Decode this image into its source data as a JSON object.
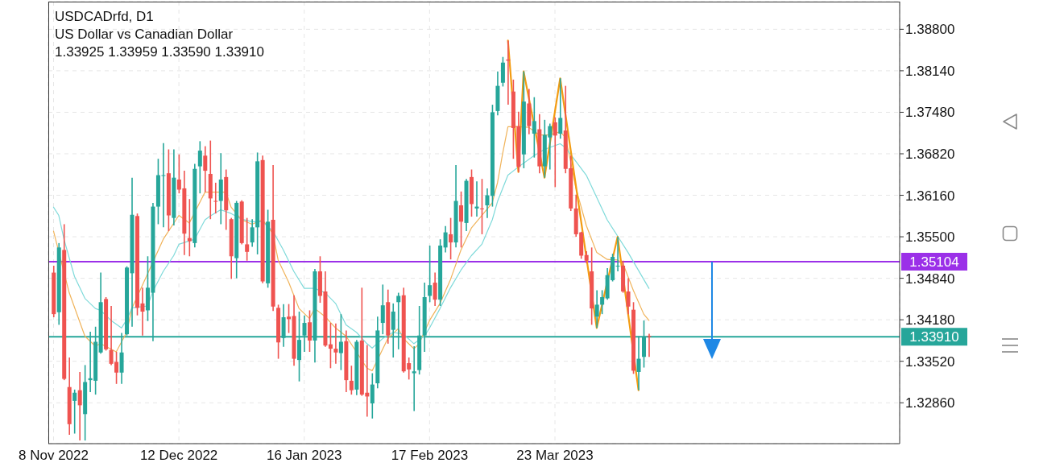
{
  "chart_data": {
    "type": "candlestick",
    "title": "USDCADrfd, D1",
    "subtitle": "US Dollar vs Canadian Dollar",
    "annotations": [
      "1.33925 1.33959 1.33590 1.33910"
    ],
    "categories": [
      "8 Nov 2022",
      null,
      null,
      null,
      null,
      null,
      null,
      null,
      null,
      null,
      null,
      null,
      null,
      null,
      null,
      null,
      null,
      null,
      null,
      null,
      null,
      null,
      null,
      null,
      "12 Dec 2022",
      null,
      null,
      null,
      null,
      null,
      null,
      null,
      null,
      null,
      null,
      null,
      null,
      null,
      null,
      null,
      null,
      null,
      null,
      null,
      null,
      null,
      null,
      null,
      "16 Jan 2023",
      null,
      null,
      null,
      null,
      null,
      null,
      null,
      null,
      null,
      null,
      null,
      null,
      null,
      null,
      null,
      null,
      null,
      null,
      null,
      null,
      null,
      null,
      null,
      "17 Feb 2023",
      null,
      null,
      null,
      null,
      null,
      null,
      null,
      null,
      null,
      null,
      null,
      null,
      null,
      null,
      null,
      null,
      null,
      null,
      null,
      null,
      null,
      null,
      null,
      "23 Mar 2023",
      null,
      null,
      null,
      null,
      null,
      null,
      null,
      null,
      null,
      null,
      null,
      null,
      null,
      null,
      null,
      null,
      null,
      null
    ],
    "ohlc": [
      [
        1.3493,
        1.3504,
        1.3422,
        1.3427
      ],
      [
        1.343,
        1.354,
        1.341,
        1.3533
      ],
      [
        1.3529,
        1.357,
        1.3322,
        1.3324
      ],
      [
        1.3311,
        1.3358,
        1.3235,
        1.3252
      ],
      [
        1.3289,
        1.3307,
        1.3237,
        1.3302
      ],
      [
        1.3306,
        1.3335,
        1.3226,
        1.3282
      ],
      [
        1.3268,
        1.3346,
        1.3226,
        1.3319
      ],
      [
        1.3322,
        1.3399,
        1.3303,
        1.3325
      ],
      [
        1.3321,
        1.3407,
        1.3299,
        1.3383
      ],
      [
        1.3366,
        1.3493,
        1.3364,
        1.3446
      ],
      [
        1.3451,
        1.3454,
        1.3369,
        1.3371
      ],
      [
        1.337,
        1.344,
        1.3346,
        1.3348
      ],
      [
        1.3351,
        1.3367,
        1.3316,
        1.3334
      ],
      [
        1.3334,
        1.3397,
        1.3316,
        1.3366
      ],
      [
        1.3395,
        1.3503,
        1.3393,
        1.3501
      ],
      [
        1.3492,
        1.3644,
        1.3407,
        1.3585
      ],
      [
        1.3583,
        1.3587,
        1.3425,
        1.3437
      ],
      [
        1.3444,
        1.3469,
        1.3393,
        1.3431
      ],
      [
        1.3433,
        1.3519,
        1.3416,
        1.3469
      ],
      [
        1.3461,
        1.3604,
        1.3384,
        1.3598
      ],
      [
        1.3598,
        1.3674,
        1.357,
        1.3648
      ],
      [
        1.3647,
        1.3699,
        1.3565,
        1.3648
      ],
      [
        1.3651,
        1.3689,
        1.3559,
        1.3584
      ],
      [
        1.358,
        1.3689,
        1.3568,
        1.3644
      ],
      [
        1.3641,
        1.3681,
        1.3619,
        1.3625
      ],
      [
        1.3627,
        1.3655,
        1.3521,
        1.3555
      ],
      [
        1.3548,
        1.361,
        1.3519,
        1.3543
      ],
      [
        1.354,
        1.3666,
        1.3533,
        1.3658
      ],
      [
        1.3662,
        1.3702,
        1.3619,
        1.3687
      ],
      [
        1.3679,
        1.3694,
        1.3621,
        1.3655
      ],
      [
        1.365,
        1.3703,
        1.3578,
        1.3611
      ],
      [
        1.3607,
        1.3636,
        1.3587,
        1.3606
      ],
      [
        1.3607,
        1.3683,
        1.357,
        1.3641
      ],
      [
        1.3645,
        1.3657,
        1.3561,
        1.3592
      ],
      [
        1.3578,
        1.358,
        1.3483,
        1.3519
      ],
      [
        1.3516,
        1.3607,
        1.3484,
        1.3604
      ],
      [
        1.3606,
        1.3608,
        1.3538,
        1.354
      ],
      [
        1.3538,
        1.358,
        1.3512,
        1.3526
      ],
      [
        1.3541,
        1.3578,
        1.3534,
        1.3565
      ],
      [
        1.3565,
        1.3684,
        1.3522,
        1.367
      ],
      [
        1.3672,
        1.3679,
        1.3476,
        1.3479
      ],
      [
        1.3476,
        1.3593,
        1.3469,
        1.3574
      ],
      [
        1.3577,
        1.3664,
        1.3432,
        1.3439
      ],
      [
        1.3437,
        1.3442,
        1.3356,
        1.3382
      ],
      [
        1.3389,
        1.3443,
        1.3375,
        1.3422
      ],
      [
        1.3423,
        1.3443,
        1.3397,
        1.3419
      ],
      [
        1.3424,
        1.3457,
        1.3345,
        1.3356
      ],
      [
        1.3354,
        1.3431,
        1.332,
        1.3386
      ],
      [
        1.3393,
        1.3425,
        1.3367,
        1.3413
      ],
      [
        1.3414,
        1.3433,
        1.3367,
        1.3385
      ],
      [
        1.3385,
        1.3499,
        1.335,
        1.3495
      ],
      [
        1.3495,
        1.3519,
        1.3445,
        1.3456
      ],
      [
        1.3463,
        1.3495,
        1.3375,
        1.3377
      ],
      [
        1.3379,
        1.3413,
        1.3341,
        1.3372
      ],
      [
        1.3372,
        1.3412,
        1.3348,
        1.3366
      ],
      [
        1.3365,
        1.3427,
        1.3338,
        1.3383
      ],
      [
        1.3384,
        1.3401,
        1.3303,
        1.3322
      ],
      [
        1.3321,
        1.3345,
        1.3299,
        1.3306
      ],
      [
        1.3307,
        1.3386,
        1.3298,
        1.3383
      ],
      [
        1.3385,
        1.3469,
        1.3297,
        1.3299
      ],
      [
        1.3302,
        1.3378,
        1.3264,
        1.3296
      ],
      [
        1.3285,
        1.3333,
        1.3261,
        1.3315
      ],
      [
        1.3317,
        1.3423,
        1.3309,
        1.3401
      ],
      [
        1.3413,
        1.3474,
        1.3395,
        1.3441
      ],
      [
        1.3446,
        1.3466,
        1.338,
        1.3393
      ],
      [
        1.3402,
        1.3444,
        1.3358,
        1.3431
      ],
      [
        1.3446,
        1.3461,
        1.3371,
        1.3456
      ],
      [
        1.3457,
        1.3469,
        1.3334,
        1.3336
      ],
      [
        1.3349,
        1.3358,
        1.3323,
        1.3339
      ],
      [
        1.3333,
        1.3376,
        1.3273,
        1.3336
      ],
      [
        1.3338,
        1.344,
        1.3331,
        1.3393
      ],
      [
        1.3393,
        1.3477,
        1.3367,
        1.3454
      ],
      [
        1.3456,
        1.3536,
        1.3446,
        1.3473
      ],
      [
        1.3477,
        1.3493,
        1.344,
        1.345
      ],
      [
        1.345,
        1.3546,
        1.344,
        1.3536
      ],
      [
        1.3533,
        1.3567,
        1.3525,
        1.3557
      ],
      [
        1.3554,
        1.358,
        1.3514,
        1.3541
      ],
      [
        1.3541,
        1.3664,
        1.3533,
        1.3607
      ],
      [
        1.36,
        1.3622,
        1.3533,
        1.3574
      ],
      [
        1.3572,
        1.3642,
        1.3559,
        1.3639
      ],
      [
        1.3645,
        1.3657,
        1.3582,
        1.3602
      ],
      [
        1.3595,
        1.3638,
        1.3582,
        1.3598
      ],
      [
        1.3595,
        1.3642,
        1.3554,
        1.3594
      ],
      [
        1.36,
        1.3627,
        1.358,
        1.3616
      ],
      [
        1.3615,
        1.376,
        1.3598,
        1.3748
      ],
      [
        1.375,
        1.3813,
        1.3743,
        1.379
      ],
      [
        1.3795,
        1.3836,
        1.3789,
        1.3827
      ],
      [
        1.3832,
        1.3862,
        1.376,
        1.383
      ],
      [
        1.3781,
        1.38,
        1.3674,
        1.3723
      ],
      [
        1.3726,
        1.3749,
        1.3653,
        1.3661
      ],
      [
        1.3681,
        1.3813,
        1.3659,
        1.3765
      ],
      [
        1.3762,
        1.3785,
        1.3713,
        1.3726
      ],
      [
        1.3714,
        1.3772,
        1.3676,
        1.3734
      ],
      [
        1.3721,
        1.3745,
        1.3651,
        1.3662
      ],
      [
        1.3662,
        1.3736,
        1.3644,
        1.3712
      ],
      [
        1.3708,
        1.373,
        1.3657,
        1.3726
      ],
      [
        1.3732,
        1.374,
        1.3629,
        1.3711
      ],
      [
        1.3714,
        1.3802,
        1.3706,
        1.3739
      ],
      [
        1.3719,
        1.379,
        1.3651,
        1.3658
      ],
      [
        1.3659,
        1.3679,
        1.3591,
        1.3595
      ],
      [
        1.3595,
        1.3617,
        1.355,
        1.3554
      ],
      [
        1.3557,
        1.3558,
        1.3515,
        1.352
      ],
      [
        1.3521,
        1.3527,
        1.3508,
        1.3512
      ],
      [
        1.3495,
        1.3533,
        1.341,
        1.3436
      ],
      [
        1.3423,
        1.3465,
        1.3405,
        1.3442
      ],
      [
        1.3442,
        1.3465,
        1.3427,
        1.3454
      ],
      [
        1.3452,
        1.35,
        1.345,
        1.3489
      ],
      [
        1.3481,
        1.3523,
        1.3479,
        1.3518
      ],
      [
        1.3503,
        1.355,
        1.3495,
        1.3504
      ],
      [
        1.3504,
        1.3512,
        1.3461,
        1.3463
      ],
      [
        1.3463,
        1.3484,
        1.3427,
        1.3439
      ],
      [
        1.3434,
        1.3446,
        1.3332,
        1.3337
      ],
      [
        1.3335,
        1.3392,
        1.3306,
        1.3356
      ],
      [
        1.3359,
        1.3417,
        1.3342,
        1.339
      ],
      [
        1.33925,
        1.33959,
        1.3359,
        1.3391
      ]
    ],
    "colors": [
      "#ef5350",
      "#26a69a",
      "#ef5350",
      "#ef5350",
      "#26a69a",
      "#ef5350",
      "#26a69a",
      "#26a69a",
      "#26a69a",
      "#26a69a",
      "#ef5350",
      "#ef5350",
      "#ef5350",
      "#26a69a",
      "#26a69a",
      "#26a69a",
      "#ef5350",
      "#ef5350",
      "#26a69a",
      "#26a69a",
      "#26a69a",
      "#26a69a",
      "#ef5350",
      "#26a69a",
      "#ef5350",
      "#ef5350",
      "#ef5350",
      "#26a69a",
      "#26a69a",
      "#ef5350",
      "#ef5350",
      "#ef5350",
      "#26a69a",
      "#ef5350",
      "#ef5350",
      "#26a69a",
      "#ef5350",
      "#ef5350",
      "#26a69a",
      "#26a69a",
      "#ef5350",
      "#26a69a",
      "#ef5350",
      "#ef5350",
      "#26a69a",
      "#ef5350",
      "#ef5350",
      "#26a69a",
      "#26a69a",
      "#ef5350",
      "#26a69a",
      "#ef5350",
      "#ef5350",
      "#ef5350",
      "#ef5350",
      "#26a69a",
      "#ef5350",
      "#ef5350",
      "#26a69a",
      "#ef5350",
      "#ef5350",
      "#26a69a",
      "#26a69a",
      "#26a69a",
      "#ef5350",
      "#26a69a",
      "#26a69a",
      "#ef5350",
      "#ef5350",
      "#26a69a",
      "#26a69a",
      "#26a69a",
      "#26a69a",
      "#ef5350",
      "#26a69a",
      "#26a69a",
      "#ef5350",
      "#26a69a",
      "#ef5350",
      "#26a69a",
      "#ef5350",
      "#26a69a",
      "#ef5350",
      "#26a69a",
      "#26a69a",
      "#26a69a",
      "#26a69a",
      "#ef5350",
      "#ef5350",
      "#ef5350",
      "#26a69a",
      "#ef5350",
      "#26a69a",
      "#ef5350",
      "#26a69a",
      "#26a69a",
      "#ef5350",
      "#26a69a",
      "#ef5350",
      "#ef5350",
      "#ef5350",
      "#ef5350",
      "#ef5350",
      "#ef5350",
      "#26a69a",
      "#26a69a",
      "#26a69a",
      "#26a69a",
      "#26a69a",
      "#ef5350",
      "#ef5350",
      "#ef5350",
      "#26a69a",
      "#26a69a",
      "#ef5350"
    ],
    "series": [
      {
        "type": "line",
        "color": "#f0b35a",
        "values": [
          1.3559,
          null,
          null,
          1.3461,
          null,
          null,
          1.3392,
          null,
          1.3376,
          1.338,
          null,
          null,
          1.3367,
          null,
          1.3398,
          1.3436,
          null,
          null,
          null,
          null,
          null,
          1.3546,
          null,
          null,
          1.3584,
          null,
          1.3572,
          null,
          null,
          1.3621,
          null,
          null,
          null,
          1.3621,
          1.3597,
          null,
          1.3577,
          null,
          1.357,
          null,
          1.3577,
          null,
          1.3555,
          1.3513,
          null,
          1.3478,
          null,
          1.3436,
          null,
          1.342,
          1.3436,
          null,
          1.3423,
          null,
          1.3405,
          null,
          1.3392,
          null,
          1.3367,
          null,
          1.3341,
          1.3337,
          null,
          null,
          1.3388,
          null,
          1.3404,
          1.3388,
          null,
          1.3372,
          1.338,
          null,
          1.3417,
          null,
          1.3444,
          null,
          1.3482,
          null,
          1.3529,
          null,
          1.3564,
          null,
          1.3584,
          null,
          1.3604,
          1.3636,
          1.3683,
          1.3725,
          null,
          1.3725,
          null,
          1.3724,
          null,
          1.3712,
          null,
          1.3712,
          null,
          1.3717,
          1.3708,
          1.367,
          1.3628,
          null,
          1.3568,
          null,
          1.3525,
          null,
          1.3514,
          null,
          1.3513,
          1.3508,
          null,
          1.3465,
          null,
          1.3427,
          1.3417
        ]
      },
      {
        "type": "line",
        "color": "#7fdada",
        "values": [
          1.3597,
          1.3584,
          1.3546,
          null,
          1.3487,
          null,
          1.3452,
          null,
          1.3436,
          1.3433,
          null,
          1.3417,
          null,
          1.3405,
          1.3418,
          1.3437,
          null,
          null,
          1.344,
          1.3463,
          null,
          1.3495,
          null,
          1.352,
          1.3538,
          null,
          null,
          1.3546,
          null,
          1.3577,
          1.3583,
          null,
          1.3593,
          null,
          1.3587,
          null,
          1.3578,
          null,
          1.3574,
          null,
          1.3574,
          null,
          1.3559,
          null,
          1.3529,
          null,
          1.3495,
          null,
          1.3468,
          null,
          1.3468,
          null,
          1.3461,
          null,
          1.3444,
          null,
          1.341,
          null,
          1.3398,
          null,
          1.338,
          1.3373,
          null,
          1.3388,
          null,
          1.3398,
          null,
          1.3395,
          null,
          1.338,
          null,
          1.3392,
          1.3405,
          null,
          1.3436,
          null,
          1.3469,
          null,
          1.3497,
          null,
          1.352,
          null,
          1.3538,
          null,
          1.3577,
          1.3606,
          null,
          1.3648,
          null,
          1.3661,
          null,
          null,
          1.3679,
          null,
          1.3689,
          null,
          null,
          1.3698,
          1.3692,
          null,
          null,
          null,
          1.3648,
          null,
          null,
          null,
          1.3577,
          null,
          1.3551,
          null,
          1.3525,
          null,
          null,
          null,
          1.3468
        ]
      },
      {
        "type": "line",
        "color": "#f39c12",
        "values": [
          null,
          null,
          null,
          null,
          null,
          null,
          null,
          null,
          null,
          null,
          null,
          null,
          null,
          null,
          null,
          null,
          null,
          null,
          null,
          null,
          null,
          null,
          null,
          null,
          null,
          null,
          null,
          null,
          null,
          null,
          null,
          null,
          null,
          null,
          null,
          null,
          null,
          null,
          null,
          null,
          null,
          null,
          null,
          null,
          null,
          null,
          null,
          null,
          null,
          null,
          null,
          null,
          null,
          null,
          null,
          null,
          null,
          null,
          null,
          null,
          null,
          null,
          null,
          null,
          null,
          null,
          null,
          null,
          null,
          null,
          null,
          null,
          null,
          null,
          null,
          null,
          null,
          null,
          null,
          null,
          null,
          null,
          null,
          null,
          null,
          null,
          null,
          1.3862,
          null,
          1.3653,
          1.3813,
          null,
          null,
          null,
          1.3644,
          null,
          null,
          1.3802,
          null,
          null,
          null,
          null,
          null,
          null,
          1.3405,
          null,
          null,
          null,
          1.355,
          null,
          null,
          null,
          1.3306,
          null,
          null
        ]
      }
    ],
    "ylim": [
      1.3221,
      1.3924
    ],
    "yticks": [
      {
        "value": 1.3286,
        "label": "1.32860"
      },
      {
        "value": 1.3352,
        "label": "1.33520"
      },
      {
        "value": 1.3418,
        "label": "1.34180"
      },
      {
        "value": 1.3484,
        "label": "1.34840"
      },
      {
        "value": 1.355,
        "label": "1.35500"
      },
      {
        "value": 1.3616,
        "label": "1.36160"
      },
      {
        "value": 1.3682,
        "label": "1.36820"
      },
      {
        "value": 1.3748,
        "label": "1.37480"
      },
      {
        "value": 1.3814,
        "label": "1.38140"
      },
      {
        "value": 1.388,
        "label": "1.38800"
      }
    ],
    "ref_lines": [
      {
        "axis": "y",
        "value": 1.35104,
        "label": "1.35104",
        "color": "#9b30e8"
      },
      {
        "axis": "y",
        "value": 1.3391,
        "label": "1.33910",
        "color": "#26a69a"
      }
    ],
    "grid": true,
    "legend": false
  }
}
